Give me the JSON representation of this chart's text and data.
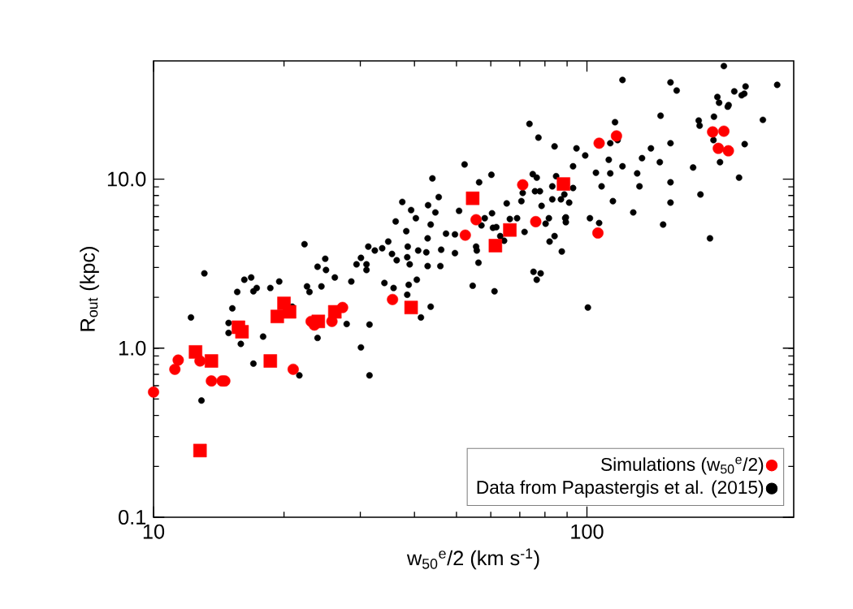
{
  "chart_data": {
    "type": "scatter",
    "xlabel": "w$_{50}$$^{e}$/2 (km s$^{-1}$)",
    "ylabel": "R$_{out}$ (kpc)",
    "log": "xy",
    "legend": "bottom right",
    "xlim": [
      10,
      300
    ],
    "ylim": [
      0.1,
      50
    ],
    "xticks": [
      10,
      100
    ],
    "yticks": [
      {
        "value": 0.1,
        "label": "0.1"
      },
      {
        "value": 1,
        "label": "1.0"
      },
      {
        "value": 10,
        "label": "10.0"
      }
    ],
    "series": [
      {
        "name": "Simulations (w$_{50}$$^{e}$/2)",
        "color": "#ff0000",
        "marker": "circle",
        "x": [
          10,
          11.2,
          11.4,
          12.8,
          13.6,
          14.4,
          14.6,
          21.0,
          23.1,
          23.5,
          25.8,
          27.3,
          35.6,
          52.4,
          55.5,
          71.1,
          76.2,
          106.7,
          117,
          195,
          207,
          201,
          212,
          106
        ],
        "values": [
          0.55,
          0.75,
          0.85,
          0.84,
          0.64,
          0.64,
          0.64,
          0.75,
          1.44,
          1.37,
          1.44,
          1.74,
          1.94,
          4.66,
          5.75,
          9.25,
          5.6,
          16.3,
          18,
          19,
          19.2,
          15.2,
          14.7,
          4.8
        ]
      },
      {
        "color": "#ff0000",
        "marker": "square",
        "x": [
          12.5,
          13.6,
          12.8,
          15.7,
          16.0,
          18.6,
          19.3,
          20.0,
          20.6,
          24.0,
          26.2,
          39.3,
          54.5,
          61.5,
          66.4,
          88.3
        ],
        "values": [
          0.95,
          0.84,
          0.248,
          1.33,
          1.25,
          0.84,
          1.54,
          1.84,
          1.64,
          1.44,
          1.64,
          1.74,
          7.7,
          4.04,
          5.0,
          9.35
        ]
      },
      {
        "name": "Data from Papastergis et al. (2015)",
        "color": "#000000",
        "marker": "circle",
        "x": [
          13.1,
          12.2,
          12.9,
          14.9,
          14.9,
          15.2,
          15.6,
          16.2,
          16.8,
          17.0,
          17.3,
          15.9,
          17.0,
          17.9,
          18.6,
          19.5,
          20.9,
          21.0,
          21.7,
          22.6,
          22.9,
          23.9,
          24.9,
          25.0,
          24.4,
          26.2,
          23.9,
          27.9,
          28.6,
          29.4,
          30.1,
          30.1,
          22.3,
          31.0,
          31.0,
          31.3,
          32.4,
          33.7,
          34.8,
          35.5,
          36.4,
          36.2,
          37.5,
          38.3,
          38.6,
          38.5,
          39.0,
          39.3,
          40.3,
          40.8,
          42.6,
          42.9,
          43.6,
          43.0,
          44.7,
          45.5,
          44.0,
          46.1,
          45.9,
          42.9,
          47.3,
          49.6,
          49.6,
          50.7,
          52.2,
          56.4,
          60.2,
          58.1,
          57.1,
          60.4,
          60.7,
          61.8,
          55.5,
          55.7,
          56.2,
          54.5,
          61.2,
          63.1,
          64.4,
          65.3,
          66.4,
          69.0,
          71.8,
          70.6,
          71.1,
          75.0,
          76.6,
          75.9,
          77.9,
          78.6,
          83.2,
          83.2,
          84.9,
          84.2,
          87.1,
          81.7,
          80.3,
          84.2,
          82.0,
          87.5,
          89.1,
          75.3,
          78.2,
          76.6,
          38.5,
          35.8,
          34.1,
          40.5,
          38.8,
          43.6,
          41.4,
          31.5,
          31.5,
          73.7,
          77.3,
          94.6,
          99.1,
          92.9,
          92.9,
          88.7,
          91.0,
          89.4,
          89.4,
          100.5,
          101.6,
          106.7,
          104.9,
          108.1,
          112.3,
          113.2,
          113.2,
          116.1,
          117.7,
          114.8,
          120.8,
          127.9,
          130.6,
          132.2,
          134.0,
          140.5,
          147.3,
          147.9,
          149.9,
          155.9,
          155.9,
          155.9,
          175.8,
          182.8,
          181.1,
          182.0,
          196.4,
          211.3,
          195.9,
          202.8,
          224.4,
          231.2,
          254.7,
          192.3,
          155.9,
          161.1,
          200.0,
          201.8,
          207.0,
          212.3,
          218.8,
          227.5,
          230.7,
          232.3,
          274.8,
          120.8
        ],
        "values": [
          2.77,
          1.52,
          0.49,
          1.41,
          1.23,
          1.72,
          2.15,
          2.54,
          2.62,
          2.17,
          2.27,
          1.06,
          0.81,
          1.17,
          2.27,
          2.48,
          1.76,
          null,
          0.69,
          2.32,
          2.15,
          3.03,
          3.38,
          2.9,
          2.32,
          2.62,
          1.15,
          1.39,
          2.48,
          3.13,
          3.42,
          1.01,
          4.12,
          3.13,
          2.9,
          3.99,
          3.78,
          3.9,
          4.27,
          3.61,
          3.31,
          5.62,
          7.33,
          4.92,
          3.99,
          3.45,
          3.13,
          6.56,
          5.87,
          3.78,
          3.69,
          4.46,
          5.38,
          7.01,
          6.35,
          7.83,
          10.1,
          3.82,
          3.06,
          3.06,
          4.76,
          4.71,
          3.65,
          6.49,
          12.2,
          9.57,
          10.6,
          5.87,
          5.32,
          6.28,
          5.15,
          5.2,
          3.99,
          3.78,
          3.2,
          2.34,
          2.17,
          4.6,
          4.32,
          7.18,
          5.81,
          5.87,
          4.87,
          7.41,
          8.28,
          10.7,
          10.2,
          8.47,
          8.47,
          6.94,
          9.06,
          7.59,
          10.4,
          15.6,
          7.59,
          5.87,
          5.45,
          4.6,
          4.27,
          3.73,
          5.87,
          2.83,
          2.77,
          2.54,
          2.07,
          2.27,
          2.43,
          2.54,
          2.37,
          1.76,
          1.52,
          1.38,
          0.69,
          21.2,
          17.6,
          15.2,
          13.8,
          11.9,
          8.85,
          8.11,
          7.26,
          5.94,
          5.56,
          1.74,
          5.87,
          5.5,
          10.9,
          9.06,
          13.0,
          10.8,
          16.3,
          21.7,
          17.0,
          7.41,
          11.9,
          6.35,
          10.8,
          9.06,
          13.3,
          15.2,
          12.6,
          23.7,
          5.38,
          16.3,
          9.57,
          7.26,
          11.7,
          8.11,
          22.2,
          20.7,
          23.4,
          26.8,
          17.0,
          12.6,
          10.2,
          16.1,
          22.4,
          4.46,
          37.3,
          33.4,
          30.6,
          28.3,
          46.6,
          27.4,
          33.0,
          31.3,
          32.0,
          35.3,
          36.1,
          38.6
        ]
      }
    ]
  }
}
